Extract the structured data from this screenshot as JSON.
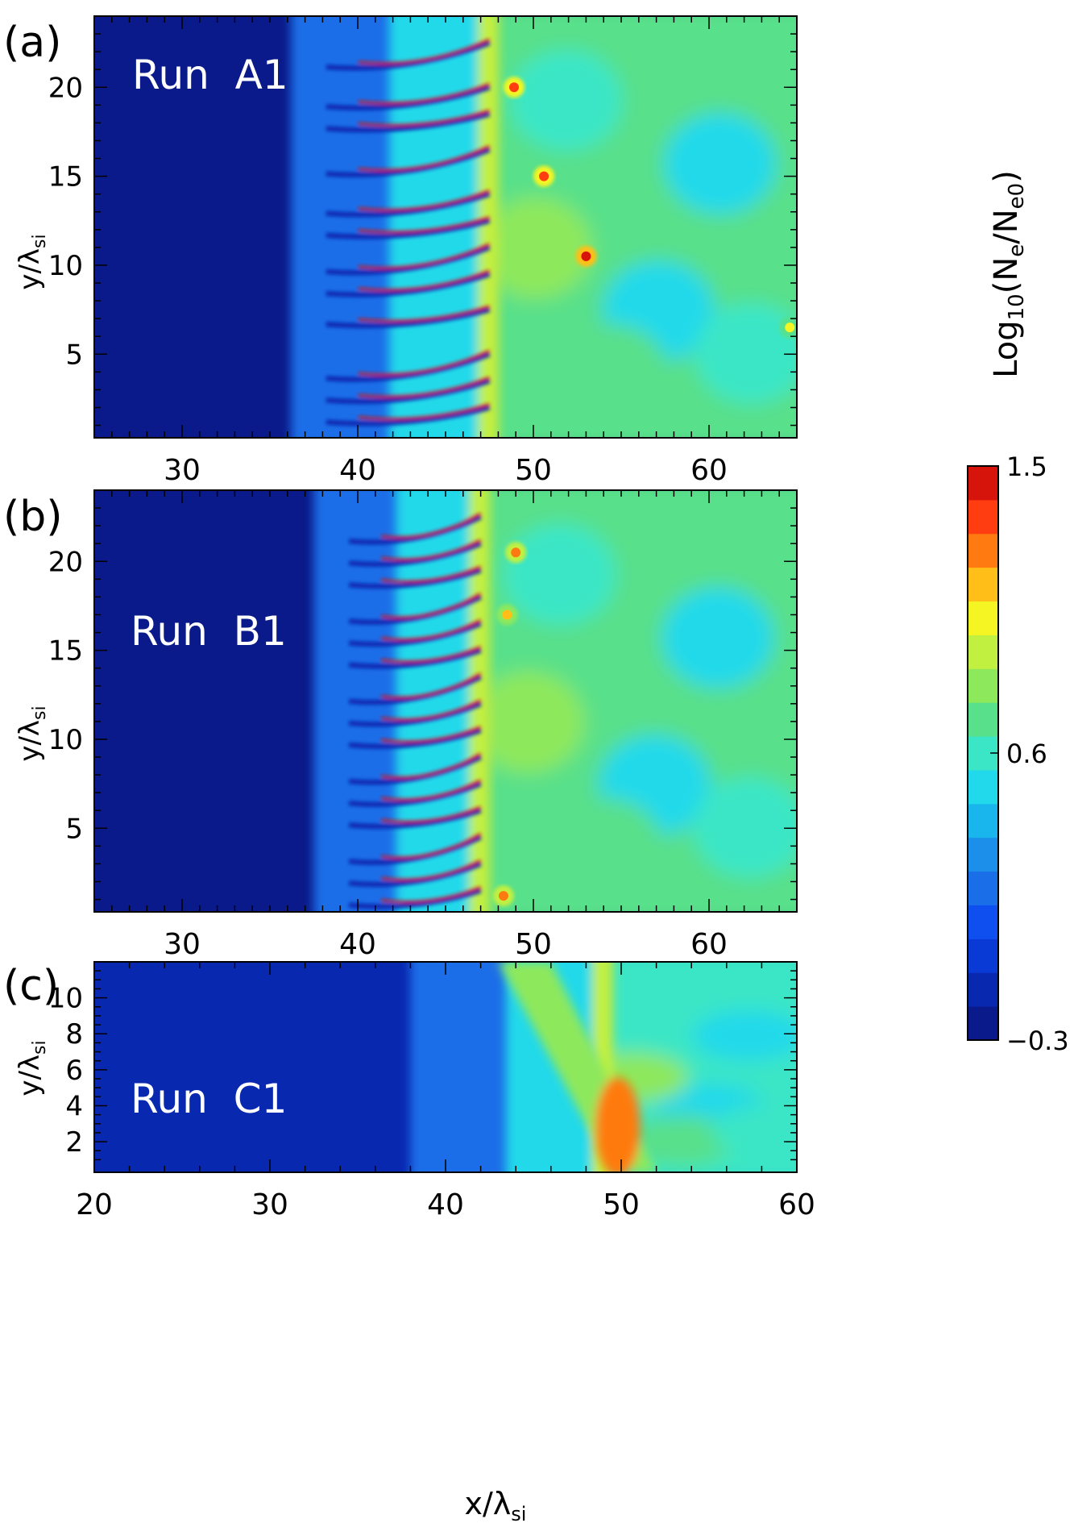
{
  "chart_data": [
    {
      "type": "heatmap",
      "panel_label": "(a)",
      "run_label": "Run  A1",
      "xlabel": "",
      "ylabel": "y/λ",
      "ylabel_sub": "si",
      "xlim": [
        25,
        65
      ],
      "ylim": [
        0.3,
        24
      ],
      "xticks": [
        30,
        40,
        50,
        60
      ],
      "yticks": [
        5,
        10,
        15,
        20
      ],
      "field": {
        "upstream_edge_x": 36.2,
        "front_x": 47.5,
        "background_level": -0.2,
        "downstream_level": 0.7,
        "front_level": 1.15,
        "filament_y": [
          2.0,
          3.5,
          5.0,
          7.5,
          9.5,
          11.0,
          12.5,
          14.0,
          16.5,
          18.5,
          20.0,
          22.5
        ],
        "blobs": [
          {
            "x": 53.0,
            "y": 10.5,
            "level": 1.45
          },
          {
            "x": 50.6,
            "y": 15.0,
            "level": 1.3
          },
          {
            "x": 48.9,
            "y": 20.0,
            "level": 1.3
          },
          {
            "x": 64.6,
            "y": 6.5,
            "level": 1.0
          }
        ]
      }
    },
    {
      "type": "heatmap",
      "panel_label": "(b)",
      "run_label": "Run  B1",
      "xlabel": "",
      "ylabel": "y/λ",
      "ylabel_sub": "si",
      "xlim": [
        25,
        65
      ],
      "ylim": [
        0.3,
        24
      ],
      "xticks": [
        30,
        40,
        50,
        60
      ],
      "yticks": [
        5,
        10,
        15,
        20
      ],
      "field": {
        "upstream_edge_x": 37.5,
        "front_x": 47.0,
        "background_level": -0.2,
        "downstream_level": 0.75,
        "front_level": 1.15,
        "filament_y": [
          1.5,
          3.0,
          4.5,
          6.0,
          7.5,
          9.0,
          10.5,
          12.0,
          13.5,
          15.0,
          16.5,
          18.0,
          19.5,
          21.0,
          22.5
        ],
        "blobs": [
          {
            "x": 48.5,
            "y": 17.0,
            "level": 1.15
          },
          {
            "x": 49.0,
            "y": 20.5,
            "level": 1.2
          },
          {
            "x": 48.3,
            "y": 1.2,
            "level": 1.2
          }
        ]
      }
    },
    {
      "type": "heatmap",
      "panel_label": "(c)",
      "run_label": "Run  C1",
      "xlabel": "x/λ",
      "xlabel_sub": "si",
      "ylabel": "y/λ",
      "ylabel_sub": "si",
      "xlim": [
        20,
        60
      ],
      "ylim": [
        0.3,
        12
      ],
      "xticks": [
        20,
        30,
        40,
        50,
        60
      ],
      "yticks": [
        2,
        4,
        6,
        8,
        10
      ],
      "field": {
        "upstream_edge_x": 38.0,
        "front_x": 49.0,
        "background_level": -0.15,
        "downstream_level": 0.55,
        "front_level": 1.15,
        "filament_y": [],
        "blobs": []
      }
    }
  ],
  "colorbar": {
    "title": "Log",
    "title_sub": "10",
    "title_rest": "(N",
    "title_sub2": "e",
    "title_rest2": "/N",
    "title_sub3": "e0",
    "title_end": ")",
    "min": -0.3,
    "max": 1.5,
    "tick_labels": [
      "1.5",
      "0.6",
      "−0.3"
    ],
    "tick_values": [
      1.5,
      0.6,
      -0.3
    ],
    "colors": [
      "#0a1a8a",
      "#0828b0",
      "#0a3ad6",
      "#0f4ff0",
      "#1a6ee8",
      "#1b8fea",
      "#19b6ee",
      "#21d9ea",
      "#3be6c6",
      "#58e08a",
      "#8ee85c",
      "#c2f040",
      "#f5f523",
      "#ffbf18",
      "#ff7a10",
      "#ff3d10",
      "#d6140c"
    ]
  }
}
